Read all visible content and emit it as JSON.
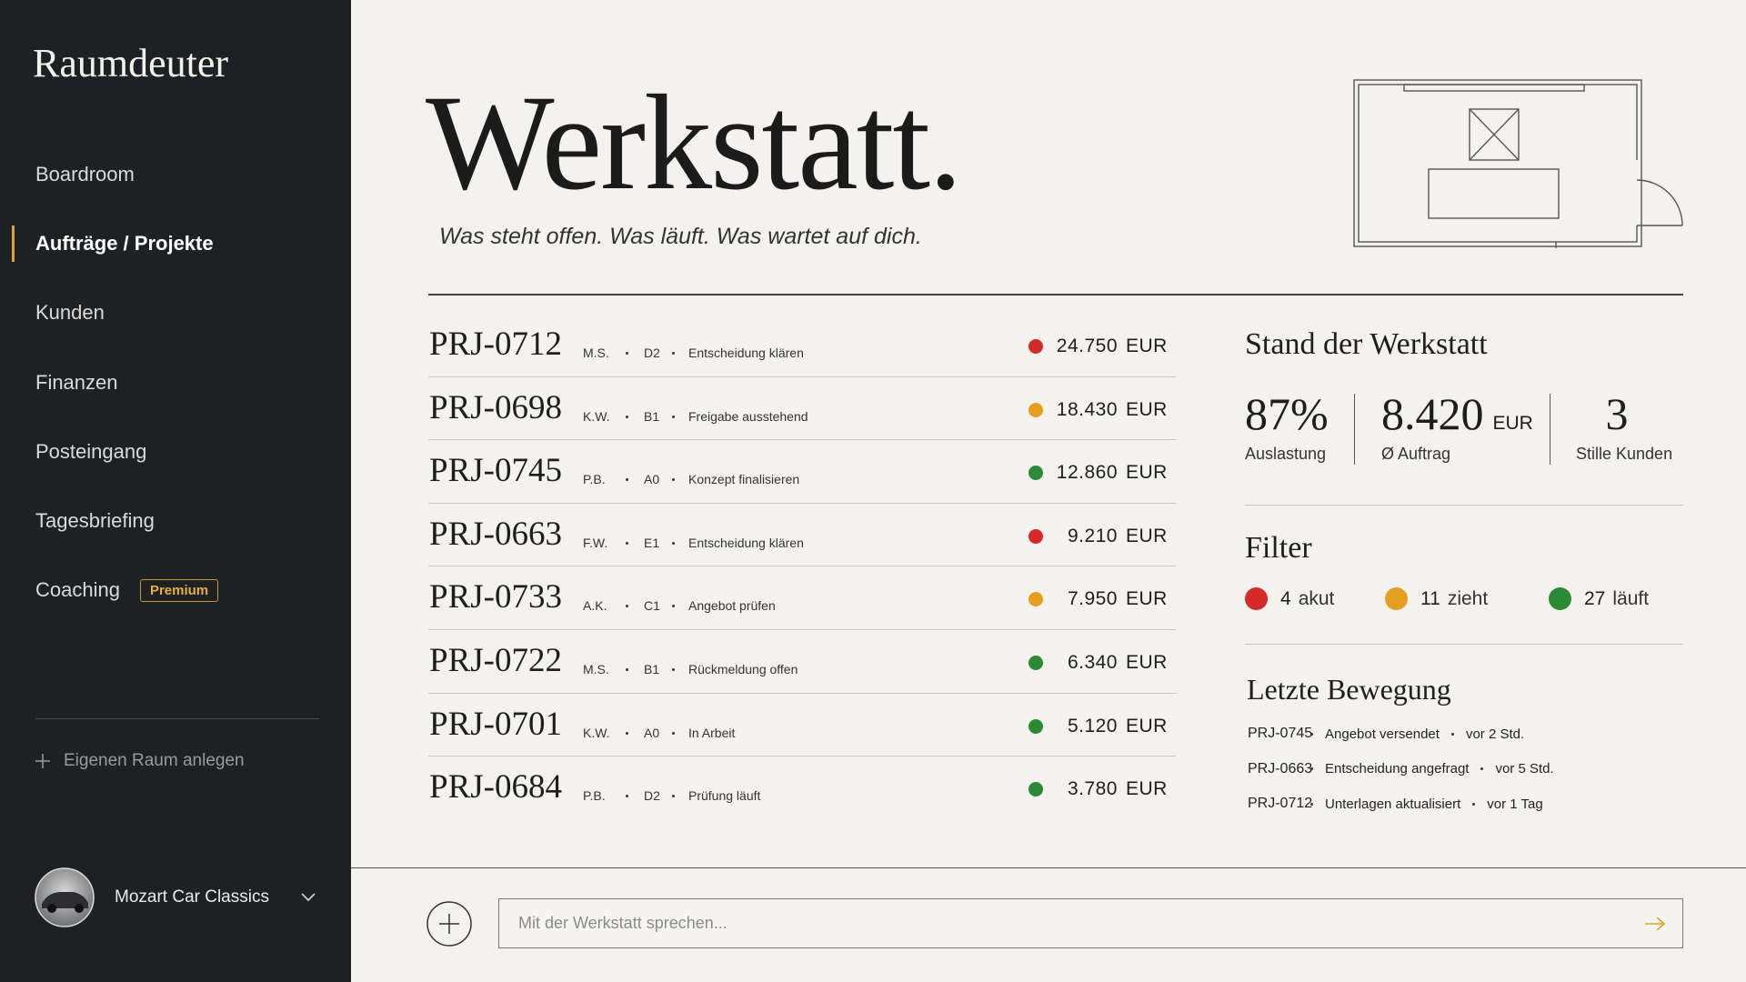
{
  "sidebar": {
    "brand": "Raumdeuter",
    "nav": [
      {
        "label": "Boardroom"
      },
      {
        "label": "Aufträge / Projekte",
        "active": true
      },
      {
        "label": "Kunden"
      },
      {
        "label": "Finanzen"
      },
      {
        "label": "Posteingang"
      },
      {
        "label": "Tagesbriefing"
      },
      {
        "label": "Coaching",
        "badge": "Premium"
      }
    ],
    "add_room": "Eigenen Raum anlegen",
    "account": "Mozart Car Classics"
  },
  "header": {
    "title": "Werkstatt.",
    "subtitle": "Was steht offen. Was läuft. Was wartet auf dich."
  },
  "projects": [
    {
      "id": "PRJ-0712",
      "owner": "M.S.",
      "phase": "D2",
      "status": "Entscheidung klären",
      "color": "#d42a2a",
      "amount": "24.750",
      "currency": "EUR"
    },
    {
      "id": "PRJ-0698",
      "owner": "K.W.",
      "phase": "B1",
      "status": "Freigabe ausstehend",
      "color": "#e3a020",
      "amount": "18.430",
      "currency": "EUR"
    },
    {
      "id": "PRJ-0745",
      "owner": "P.B.",
      "phase": "A0",
      "status": "Konzept finalisieren",
      "color": "#2a8a35",
      "amount": "12.860",
      "currency": "EUR"
    },
    {
      "id": "PRJ-0663",
      "owner": "F.W.",
      "phase": "E1",
      "status": "Entscheidung klären",
      "color": "#d42a2a",
      "amount": "9.210",
      "currency": "EUR"
    },
    {
      "id": "PRJ-0733",
      "owner": "A.K.",
      "phase": "C1",
      "status": "Angebot prüfen",
      "color": "#e3a020",
      "amount": "7.950",
      "currency": "EUR"
    },
    {
      "id": "PRJ-0722",
      "owner": "M.S.",
      "phase": "B1",
      "status": "Rückmeldung offen",
      "color": "#2a8a35",
      "amount": "6.340",
      "currency": "EUR"
    },
    {
      "id": "PRJ-0701",
      "owner": "K.W.",
      "phase": "A0",
      "status": "In Arbeit",
      "color": "#2a8a35",
      "amount": "5.120",
      "currency": "EUR"
    },
    {
      "id": "PRJ-0684",
      "owner": "P.B.",
      "phase": "D2",
      "status": "Prüfung läuft",
      "color": "#2a8a35",
      "amount": "3.780",
      "currency": "EUR"
    }
  ],
  "overview": {
    "title": "Stand der Werkstatt",
    "stats": [
      {
        "value": "87%",
        "label": "Auslastung"
      },
      {
        "value": "8.420",
        "unit": "EUR",
        "label": "Ø Auftrag"
      },
      {
        "value": "3",
        "label": "Stille Kunden"
      }
    ]
  },
  "filter": {
    "title": "Filter",
    "items": [
      {
        "count": "4",
        "label": "akut",
        "color": "#d42a2a"
      },
      {
        "count": "11",
        "label": "zieht",
        "color": "#e3a020"
      },
      {
        "count": "27",
        "label": "läuft",
        "color": "#2a8a35"
      }
    ]
  },
  "activity": {
    "title": "Letzte Bewegung",
    "items": [
      {
        "id": "PRJ-0745",
        "action": "Angebot versendet",
        "time": "vor 2 Std."
      },
      {
        "id": "PRJ-0663",
        "action": "Entscheidung angefragt",
        "time": "vor 5 Std."
      },
      {
        "id": "PRJ-0712",
        "action": "Unterlagen aktualisiert",
        "time": "vor 1 Tag"
      }
    ]
  },
  "chat": {
    "placeholder": "Mit der Werkstatt sprechen..."
  }
}
